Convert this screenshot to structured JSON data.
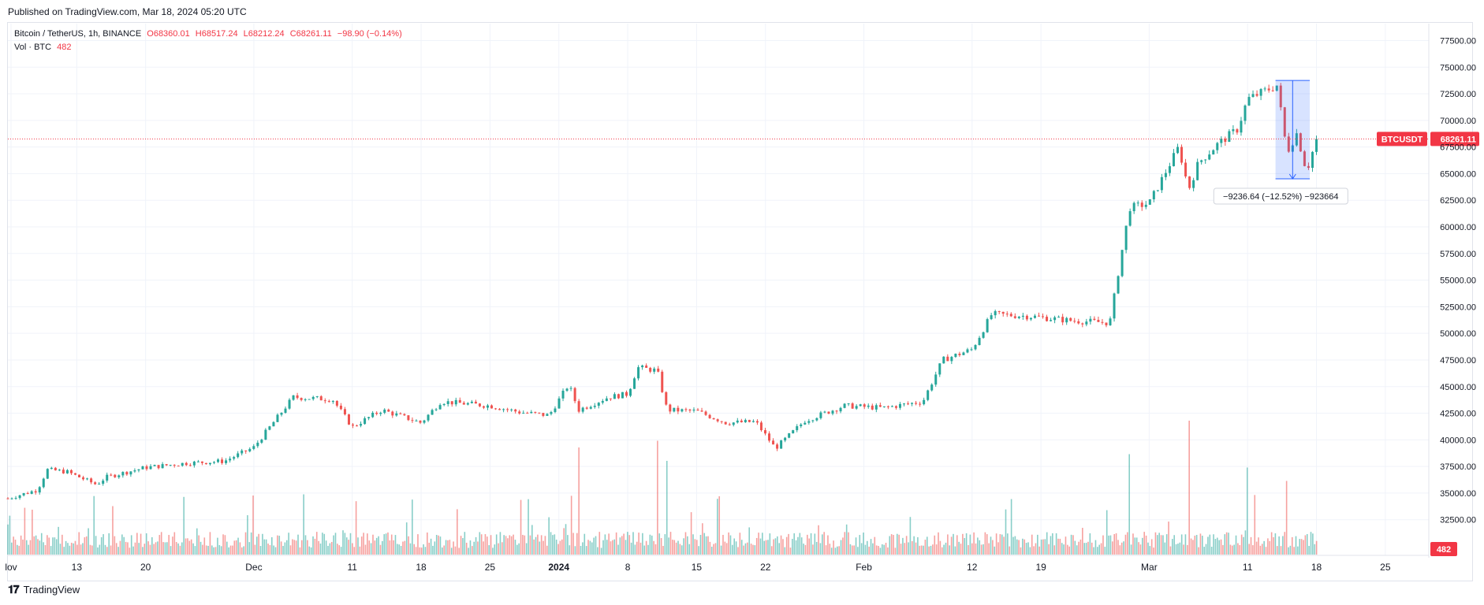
{
  "header": {
    "published": "Published on TradingView.com, Mar 18, 2024 05:20 UTC"
  },
  "legend": {
    "symbol": "Bitcoin / TetherUS, 1h, BINANCE",
    "open": "O68360.01",
    "high": "H68517.24",
    "low": "L68212.24",
    "close": "C68261.11",
    "change": "−98.90 (−0.14%)",
    "volume_label": "Vol · BTC",
    "volume_value": "482"
  },
  "footer": {
    "brand": "TradingView"
  },
  "colors": {
    "up": "#26a69a",
    "down": "#ef5350",
    "last": "#f23645",
    "measure": "#2962ff",
    "grid": "#f0f3fa"
  },
  "chart_data": {
    "type": "candlestick",
    "symbol": "BTCUSDT",
    "interval": "1h",
    "exchange": "BINANCE",
    "x_ticks": [
      "lov",
      "13",
      "20",
      "Dec",
      "11",
      "18",
      "25",
      "2024",
      "8",
      "15",
      "22",
      "Feb",
      "12",
      "19",
      "Mar",
      "11",
      "18",
      "25"
    ],
    "y_ticks": [
      "77500.00",
      "75000.00",
      "72500.00",
      "70000.00",
      "67500.00",
      "65000.00",
      "62500.00",
      "60000.00",
      "57500.00",
      "55000.00",
      "52500.00",
      "50000.00",
      "47500.00",
      "45000.00",
      "42500.00",
      "40000.00",
      "37500.00",
      "35000.00",
      "32500.00"
    ],
    "y_range": [
      31000,
      78200
    ],
    "last_price": {
      "label": "BTCUSDT",
      "value": 68261.11,
      "text": "68261.11"
    },
    "volume_last": {
      "value": 482,
      "text": "482"
    },
    "price_path": [
      {
        "d": "Nov 6",
        "p": 34500
      },
      {
        "d": "Nov 9",
        "p": 35300
      },
      {
        "d": "Nov 10",
        "p": 37200
      },
      {
        "d": "Nov 12",
        "p": 37000
      },
      {
        "d": "Nov 15",
        "p": 35800
      },
      {
        "d": "Nov 16",
        "p": 36500
      },
      {
        "d": "Nov 20",
        "p": 37400
      },
      {
        "d": "Nov 24",
        "p": 37800
      },
      {
        "d": "Nov 28",
        "p": 38000
      },
      {
        "d": "Dec 1",
        "p": 39300
      },
      {
        "d": "Dec 5",
        "p": 44000
      },
      {
        "d": "Dec 9",
        "p": 43800
      },
      {
        "d": "Dec 11",
        "p": 41200
      },
      {
        "d": "Dec 14",
        "p": 42800
      },
      {
        "d": "Dec 18",
        "p": 41600
      },
      {
        "d": "Dec 20",
        "p": 43600
      },
      {
        "d": "Dec 25",
        "p": 43200
      },
      {
        "d": "Dec 28",
        "p": 42600
      },
      {
        "d": "Dec 31",
        "p": 42300
      },
      {
        "d": "Jan 2",
        "p": 45200
      },
      {
        "d": "Jan 3",
        "p": 42800
      },
      {
        "d": "Jan 6",
        "p": 44000
      },
      {
        "d": "Jan 8",
        "p": 44300
      },
      {
        "d": "Jan 9",
        "p": 46800
      },
      {
        "d": "Jan 11",
        "p": 46500
      },
      {
        "d": "Jan 12",
        "p": 42800
      },
      {
        "d": "Jan 15",
        "p": 42700
      },
      {
        "d": "Jan 18",
        "p": 41600
      },
      {
        "d": "Jan 21",
        "p": 41700
      },
      {
        "d": "Jan 23",
        "p": 39200
      },
      {
        "d": "Jan 26",
        "p": 41800
      },
      {
        "d": "Jan 30",
        "p": 43200
      },
      {
        "d": "Feb 3",
        "p": 43000
      },
      {
        "d": "Feb 7",
        "p": 43600
      },
      {
        "d": "Feb 9",
        "p": 47500
      },
      {
        "d": "Feb 12",
        "p": 48500
      },
      {
        "d": "Feb 14",
        "p": 51800
      },
      {
        "d": "Feb 18",
        "p": 51600
      },
      {
        "d": "Feb 22",
        "p": 51200
      },
      {
        "d": "Feb 26",
        "p": 51000
      },
      {
        "d": "Feb 27",
        "p": 56500
      },
      {
        "d": "Feb 28",
        "p": 61800
      },
      {
        "d": "Mar 1",
        "p": 62200
      },
      {
        "d": "Mar 4",
        "p": 67500
      },
      {
        "d": "Mar 5",
        "p": 63500
      },
      {
        "d": "Mar 6",
        "p": 66000
      },
      {
        "d": "Mar 8",
        "p": 67800
      },
      {
        "d": "Mar 10",
        "p": 69200
      },
      {
        "d": "Mar 11",
        "p": 72000
      },
      {
        "d": "Mar 14",
        "p": 73300
      },
      {
        "d": "Mar 15",
        "p": 67000
      },
      {
        "d": "Mar 16",
        "p": 68800
      },
      {
        "d": "Mar 17",
        "p": 65200
      },
      {
        "d": "Mar 18",
        "p": 68261
      }
    ],
    "volume_peaks": [
      {
        "d": "Dec 6",
        "v": 0.45
      },
      {
        "d": "Jan 3",
        "v": 0.8
      },
      {
        "d": "Jan 11",
        "v": 0.85
      },
      {
        "d": "Jan 12",
        "v": 0.7
      },
      {
        "d": "Feb 28",
        "v": 0.75
      },
      {
        "d": "Mar 5",
        "v": 1.0
      },
      {
        "d": "Mar 11",
        "v": 0.65
      },
      {
        "d": "Mar 15",
        "v": 0.55
      }
    ],
    "measure": {
      "from": 73750,
      "to": 64513,
      "text": "−9236.64 (−12.52%) −923664"
    }
  }
}
